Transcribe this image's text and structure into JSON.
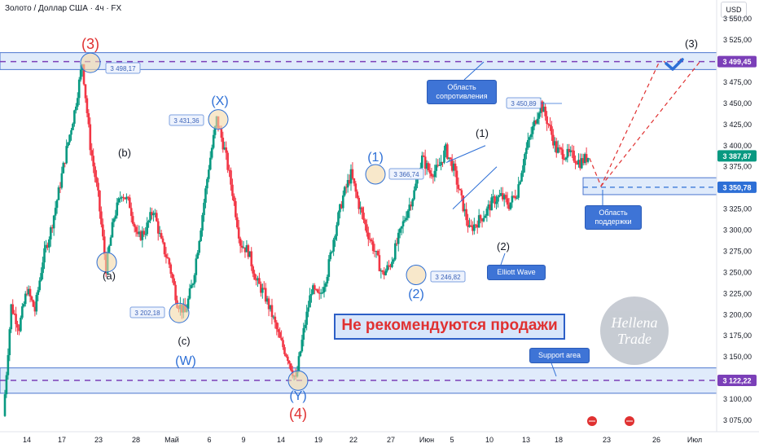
{
  "header": {
    "title": "Золото / Доллар США · 4ч · FX",
    "currency": "USD"
  },
  "colors": {
    "up": "#089981",
    "down": "#f23645",
    "zone_fill": "#dbe8fb",
    "zone_border": "#2d5fc7",
    "red_label": "#e03131",
    "blue_label": "#2d6fd6",
    "dashed_purple": "#7b3fb8"
  },
  "chart_data": {
    "type": "candlestick",
    "instrument": "Золото / Доллар США",
    "timeframe": "4ч",
    "y_range": [
      3062,
      3555
    ],
    "y_ticks": [
      "3 550,00",
      "3 525,00",
      "3 500,00",
      "3 475,00",
      "3 450,00",
      "3 425,00",
      "3 400,00",
      "3 375,00",
      "3 350,00",
      "3 325,00",
      "3 300,00",
      "3 275,00",
      "3 250,00",
      "3 225,00",
      "3 200,00",
      "3 175,00",
      "3 150,00",
      "3 125,00",
      "3 100,00",
      "3 075,00"
    ],
    "x_ticks": [
      "14",
      "17",
      "23",
      "28",
      "Май",
      "6",
      "9",
      "14",
      "19",
      "22",
      "27",
      "Июн",
      "5",
      "10",
      "13",
      "18",
      "23",
      "26",
      "Июл"
    ],
    "close_path": [
      3080,
      3210,
      3185,
      3230,
      3205,
      3265,
      3300,
      3345,
      3395,
      3440,
      3498,
      3400,
      3340,
      3255,
      3315,
      3345,
      3330,
      3290,
      3300,
      3325,
      3285,
      3260,
      3215,
      3202,
      3240,
      3305,
      3375,
      3431,
      3395,
      3345,
      3285,
      3275,
      3240,
      3225,
      3200,
      3170,
      3150,
      3122,
      3180,
      3230,
      3220,
      3250,
      3300,
      3340,
      3366,
      3330,
      3300,
      3275,
      3247,
      3260,
      3290,
      3320,
      3345,
      3385,
      3368,
      3372,
      3395,
      3372,
      3335,
      3300,
      3310,
      3320,
      3335,
      3340,
      3330,
      3345,
      3390,
      3420,
      3450,
      3425,
      3395,
      3390,
      3388,
      3380,
      3387
    ],
    "price_labels": [
      {
        "text": "3 498,17",
        "price": 3498.17
      },
      {
        "text": "3 431,36",
        "price": 3431.36
      },
      {
        "text": "3 366,74",
        "price": 3366.74
      },
      {
        "text": "3 450,89",
        "price": 3450.89
      },
      {
        "text": "3 246,82",
        "price": 3246.82
      },
      {
        "text": "3 202,18",
        "price": 3202.18
      }
    ],
    "axis_tags": [
      {
        "text": "3 499,45",
        "price": 3499.45,
        "color": "#7b3fb8"
      },
      {
        "text": "3 387,87",
        "price": 3387.87,
        "color": "#089981"
      },
      {
        "text": "3 350,78",
        "price": 3350.78,
        "color": "#2d6fd6"
      },
      {
        "text": "3 122,22",
        "price": 3122.22,
        "color": "#7b3fb8"
      }
    ],
    "resistance_zone": [
      3490,
      3510
    ],
    "support_zone_left": [
      3107,
      3137
    ],
    "support_zone_right": [
      3342,
      3362
    ],
    "wave_labels": [
      {
        "text": "(3)",
        "color": "#e03131"
      },
      {
        "text": "(X)",
        "color": "#2d6fd6"
      },
      {
        "text": "(1)",
        "color": "#2d6fd6"
      },
      {
        "text": "(2)",
        "color": "#2d6fd6"
      },
      {
        "text": "(W)",
        "color": "#2d6fd6"
      },
      {
        "text": "(Y)",
        "color": "#2d6fd6"
      },
      {
        "text": "(4)",
        "color": "#e03131"
      },
      {
        "text": "(b)",
        "color": "#131722"
      },
      {
        "text": "(a)",
        "color": "#131722"
      },
      {
        "text": "(c)",
        "color": "#131722"
      },
      {
        "text": "(1)",
        "color": "#131722"
      },
      {
        "text": "(2)",
        "color": "#131722"
      },
      {
        "text": "(3)",
        "color": "#131722"
      }
    ]
  },
  "annotations": {
    "resistance_label": "Область сопротивления",
    "support_label": "Область поддержки",
    "support_area": "Support area",
    "elliott": "Elliott Wave",
    "banner": "Не рекомендуются продажи",
    "watermark_line1": "Hellena",
    "watermark_line2": "Trade"
  }
}
